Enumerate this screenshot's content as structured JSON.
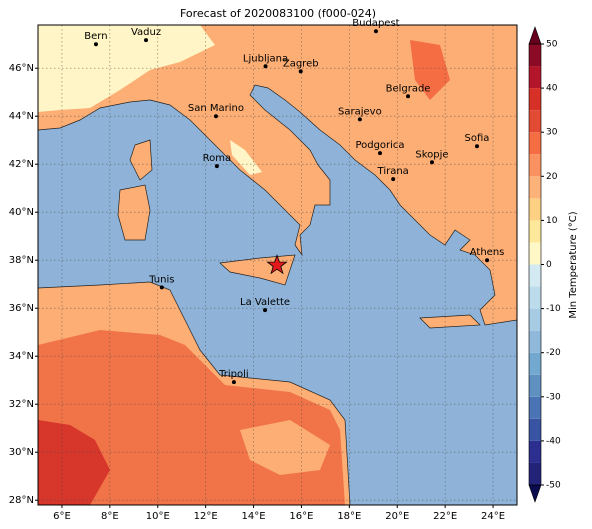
{
  "title": "Forecast of 2020083100 (f000-024)",
  "map": {
    "xlim": [
      5,
      25
    ],
    "ylim": [
      27.8,
      47.8
    ],
    "xticks": [
      {
        "value": 6,
        "label": "6°E"
      },
      {
        "value": 8,
        "label": "8°E"
      },
      {
        "value": 10,
        "label": "10°E"
      },
      {
        "value": 12,
        "label": "12°E"
      },
      {
        "value": 14,
        "label": "14°E"
      },
      {
        "value": 16,
        "label": "16°E"
      },
      {
        "value": 18,
        "label": "18°E"
      },
      {
        "value": 20,
        "label": "20°E"
      },
      {
        "value": 22,
        "label": "22°E"
      },
      {
        "value": 24,
        "label": "24°E"
      }
    ],
    "yticks": [
      {
        "value": 28,
        "label": "28°N"
      },
      {
        "value": 30,
        "label": "30°N"
      },
      {
        "value": 32,
        "label": "32°N"
      },
      {
        "value": 34,
        "label": "34°N"
      },
      {
        "value": 36,
        "label": "36°N"
      },
      {
        "value": 38,
        "label": "38°N"
      },
      {
        "value": 40,
        "label": "40°N"
      },
      {
        "value": 42,
        "label": "42°N"
      },
      {
        "value": 44,
        "label": "44°N"
      },
      {
        "value": 46,
        "label": "46°N"
      }
    ],
    "cities": [
      {
        "name": "Bern",
        "lon": 7.42,
        "lat": 47.0
      },
      {
        "name": "Vaduz",
        "lon": 9.51,
        "lat": 47.17
      },
      {
        "name": "Budapest",
        "lon": 19.11,
        "lat": 47.54
      },
      {
        "name": "Ljubljana",
        "lon": 14.5,
        "lat": 46.08
      },
      {
        "name": "Zagreb",
        "lon": 15.97,
        "lat": 45.87
      },
      {
        "name": "San Marino",
        "lon": 12.43,
        "lat": 44.0
      },
      {
        "name": "Belgrade",
        "lon": 20.45,
        "lat": 44.83
      },
      {
        "name": "Sarajevo",
        "lon": 18.44,
        "lat": 43.87
      },
      {
        "name": "Sofia",
        "lon": 23.33,
        "lat": 42.75
      },
      {
        "name": "Podgorica",
        "lon": 19.28,
        "lat": 42.46
      },
      {
        "name": "Skopje",
        "lon": 21.45,
        "lat": 42.08
      },
      {
        "name": "Roma",
        "lon": 12.47,
        "lat": 41.92
      },
      {
        "name": "Tirana",
        "lon": 19.83,
        "lat": 41.38
      },
      {
        "name": "Athens",
        "lon": 23.75,
        "lat": 38.0
      },
      {
        "name": "Tunis",
        "lon": 10.17,
        "lat": 36.87
      },
      {
        "name": "La Valette",
        "lon": 14.48,
        "lat": 35.92
      },
      {
        "name": "Tripoli",
        "lon": 13.18,
        "lat": 32.92
      }
    ],
    "marker": {
      "lon": 14.98,
      "lat": 37.79,
      "color": "#e31a1c"
    }
  },
  "colorbar": {
    "label": "Min Temperature (°C)",
    "levels": [
      -50,
      -45,
      -40,
      -35,
      -30,
      -25,
      -20,
      -15,
      -10,
      -5,
      0,
      5,
      10,
      15,
      20,
      25,
      30,
      35,
      40,
      45,
      50
    ],
    "colors": [
      "#23237a",
      "#2c2f8f",
      "#3a54a4",
      "#4a74b4",
      "#5f90c0",
      "#74a9cf",
      "#8fb8da",
      "#a6cbe3",
      "#bcdbeb",
      "#d4eaf2",
      "#fff8c6",
      "#fee99a",
      "#fdd083",
      "#fdb27a",
      "#f99160",
      "#f46d43",
      "#e34a33",
      "#d73027",
      "#b3152a",
      "#8b0a26"
    ],
    "under_color": "#0b0b50",
    "over_color": "#67001f",
    "ticks": [
      -50,
      -40,
      -30,
      -20,
      -10,
      0,
      10,
      20,
      30,
      40,
      50
    ]
  }
}
